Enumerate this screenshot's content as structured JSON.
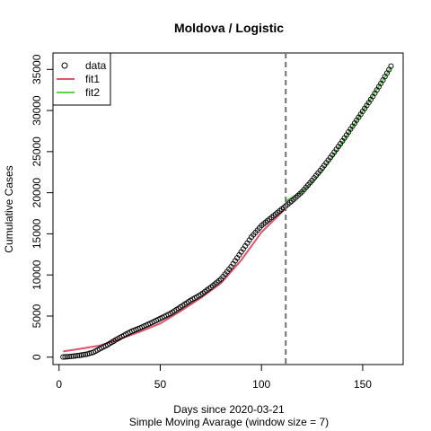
{
  "chart_data": {
    "type": "scatter",
    "title": "Moldova / Logistic",
    "xlabel": "Days since 2020-03-21",
    "subtitle": "Simple Moving Avarage (window size = 7)",
    "ylabel": "Cumulative Cases",
    "xlim": [
      -3,
      170
    ],
    "ylim": [
      -900,
      37000
    ],
    "x_ticks": [
      0,
      50,
      100,
      150
    ],
    "y_ticks": [
      0,
      5000,
      10000,
      15000,
      20000,
      25000,
      30000,
      35000
    ],
    "x_tick_labels": [
      "0",
      "50",
      "100",
      "150"
    ],
    "y_tick_labels": [
      "0",
      "5000",
      "10000",
      "15000",
      "20000",
      "25000",
      "30000",
      "35000"
    ],
    "vline": {
      "x": 112,
      "style": "dashed",
      "color": "#707070"
    },
    "legend": {
      "position": "top-left",
      "entries": [
        {
          "label": "data",
          "marker": "circle",
          "color": "#000000"
        },
        {
          "label": "fit1",
          "marker": "line",
          "color": "#DF536B"
        },
        {
          "label": "fit2",
          "marker": "line",
          "color": "#61D04F"
        }
      ]
    },
    "series": [
      {
        "name": "data",
        "style": "points",
        "color": "#000000",
        "x": [
          2,
          5,
          8,
          11,
          14,
          17,
          20,
          24,
          28,
          32,
          36,
          40,
          45,
          50,
          55,
          60,
          65,
          70,
          75,
          80,
          85,
          90,
          95,
          100,
          105,
          110,
          115,
          120,
          125,
          130,
          135,
          140,
          145,
          150,
          155,
          160,
          164
        ],
        "y": [
          20,
          70,
          150,
          250,
          380,
          600,
          1000,
          1500,
          2100,
          2650,
          3150,
          3550,
          4100,
          4700,
          5300,
          6100,
          6900,
          7600,
          8500,
          9500,
          11000,
          12800,
          14600,
          16000,
          17000,
          18000,
          19000,
          20100,
          21500,
          23000,
          24600,
          26300,
          28100,
          29900,
          31700,
          33700,
          35400
        ]
      },
      {
        "name": "fit1",
        "style": "line",
        "color": "#DF536B",
        "x": [
          2,
          10,
          20,
          30,
          40,
          50,
          60,
          70,
          80,
          90,
          100,
          110,
          112
        ],
        "y": [
          700,
          1000,
          1400,
          2200,
          3100,
          4100,
          5600,
          7200,
          9000,
          11800,
          15200,
          17600,
          18100
        ]
      },
      {
        "name": "fit2",
        "style": "line",
        "color": "#61D04F",
        "x": [
          112,
          115,
          120,
          125,
          130,
          135,
          140,
          145,
          150,
          155,
          160,
          164
        ],
        "y": [
          19000,
          19400,
          20100,
          21200,
          22600,
          24300,
          26100,
          28000,
          29900,
          31800,
          33700,
          35300
        ]
      }
    ]
  }
}
